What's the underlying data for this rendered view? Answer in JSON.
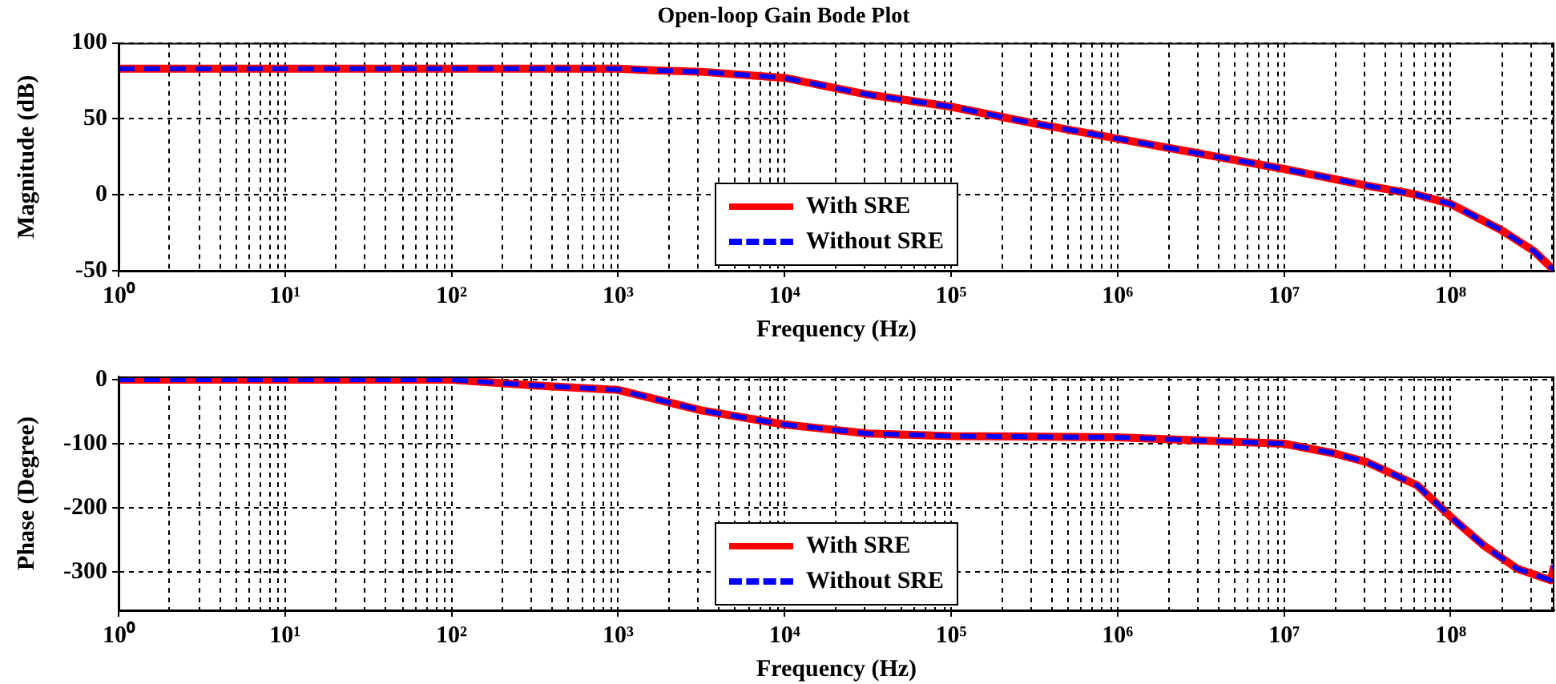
{
  "chart_data": [
    {
      "type": "line",
      "title": "Open-loop Gain Bode Plot",
      "xlabel": "Frequency (Hz)",
      "ylabel": "Magnitude (dB)",
      "log": "x",
      "grid": true,
      "legend": "bottom",
      "marker": "none",
      "x": [
        1,
        10,
        100,
        1000,
        1585,
        3162,
        10000,
        31623,
        100000,
        316228,
        1000000,
        3162278,
        10000000,
        31622777,
        63095734,
        100000000,
        199526231,
        316227766,
        420000000
      ],
      "xlim": [
        1,
        420000000
      ],
      "xticks": [
        {
          "value": 1,
          "label": "10⁰"
        },
        {
          "value": 10,
          "label": "10¹"
        },
        {
          "value": 100,
          "label": "10²"
        },
        {
          "value": 1000,
          "label": "10³"
        },
        {
          "value": 10000,
          "label": "10⁴"
        },
        {
          "value": 100000,
          "label": "10⁵"
        },
        {
          "value": 1000000,
          "label": "10⁶"
        },
        {
          "value": 10000000,
          "label": "10⁷"
        },
        {
          "value": 100000000,
          "label": "10⁸"
        }
      ],
      "ylim": [
        -50,
        100
      ],
      "yticks": [
        -50,
        0,
        50,
        100
      ],
      "series": [
        {
          "name": "With SRE",
          "color": "#ff0000",
          "line_style": "solid",
          "values": [
            83,
            83,
            83,
            83,
            82,
            81,
            77,
            66,
            58,
            47,
            37,
            27,
            17,
            6,
            0,
            -6,
            -23,
            -37,
            -50
          ]
        },
        {
          "name": "Without SRE",
          "color": "#0000ff",
          "line_style": "dashed",
          "values": [
            83,
            83,
            83,
            83,
            82,
            81,
            77,
            66,
            58,
            47,
            37,
            27,
            17,
            6,
            0,
            -6,
            -23,
            -37,
            -50
          ]
        }
      ]
    },
    {
      "type": "line",
      "xlabel": "Frequency (Hz)",
      "ylabel": "Phase (Degree)",
      "log": "x",
      "grid": true,
      "legend": "bottom",
      "marker": "none",
      "x": [
        1,
        10,
        100,
        316,
        1000,
        3162,
        10000,
        31623,
        100000,
        1000000,
        3162278,
        10000000,
        19952623,
        31622777,
        63095734,
        100000000,
        158489319,
        251188643,
        398107171,
        420000000
      ],
      "xlim": [
        1,
        420000000
      ],
      "xticks": [
        {
          "value": 1,
          "label": "10⁰"
        },
        {
          "value": 10,
          "label": "10¹"
        },
        {
          "value": 100,
          "label": "10²"
        },
        {
          "value": 1000,
          "label": "10³"
        },
        {
          "value": 10000,
          "label": "10⁴"
        },
        {
          "value": 100000,
          "label": "10⁵"
        },
        {
          "value": 1000000,
          "label": "10⁶"
        },
        {
          "value": 10000000,
          "label": "10⁷"
        },
        {
          "value": 100000000,
          "label": "10⁸"
        }
      ],
      "ylim": [
        -360,
        5
      ],
      "yticks": [
        {
          "value": -300,
          "label": "-300"
        },
        {
          "value": -200,
          "label": "-200"
        },
        {
          "value": -100,
          "label": "-100"
        },
        {
          "value": 0,
          "label": "0"
        }
      ],
      "series": [
        {
          "name": "With SRE",
          "color": "#ff0000",
          "line_style": "solid",
          "values": [
            0,
            0,
            0,
            -9,
            -16,
            -48,
            -70,
            -84,
            -88,
            -90,
            -95,
            -100,
            -115,
            -129,
            -165,
            -214,
            -259,
            -295,
            -313,
            -290
          ]
        },
        {
          "name": "Without SRE",
          "color": "#0000ff",
          "line_style": "dashed",
          "values": [
            0,
            0,
            0,
            -9,
            -16,
            -48,
            -70,
            -84,
            -88,
            -90,
            -95,
            -100,
            -115,
            -129,
            -165,
            -214,
            -259,
            -295,
            -313,
            -290
          ]
        }
      ]
    }
  ]
}
